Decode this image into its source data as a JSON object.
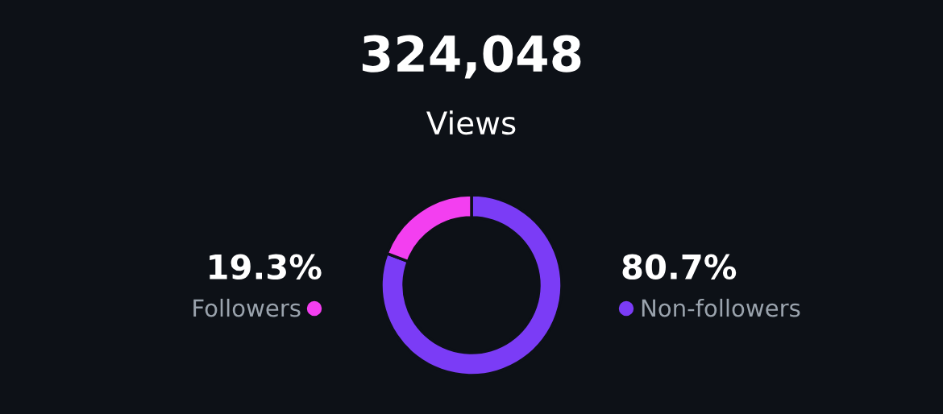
{
  "chart_data": {
    "type": "donut",
    "title": "324,048",
    "subtitle": "Views",
    "categories": [
      "Non-followers",
      "Followers"
    ],
    "values": [
      80.7,
      19.3
    ],
    "colors": [
      "#7b3cf6",
      "#f33ff0"
    ],
    "value_labels": [
      "80.7%",
      "19.3%"
    ]
  }
}
